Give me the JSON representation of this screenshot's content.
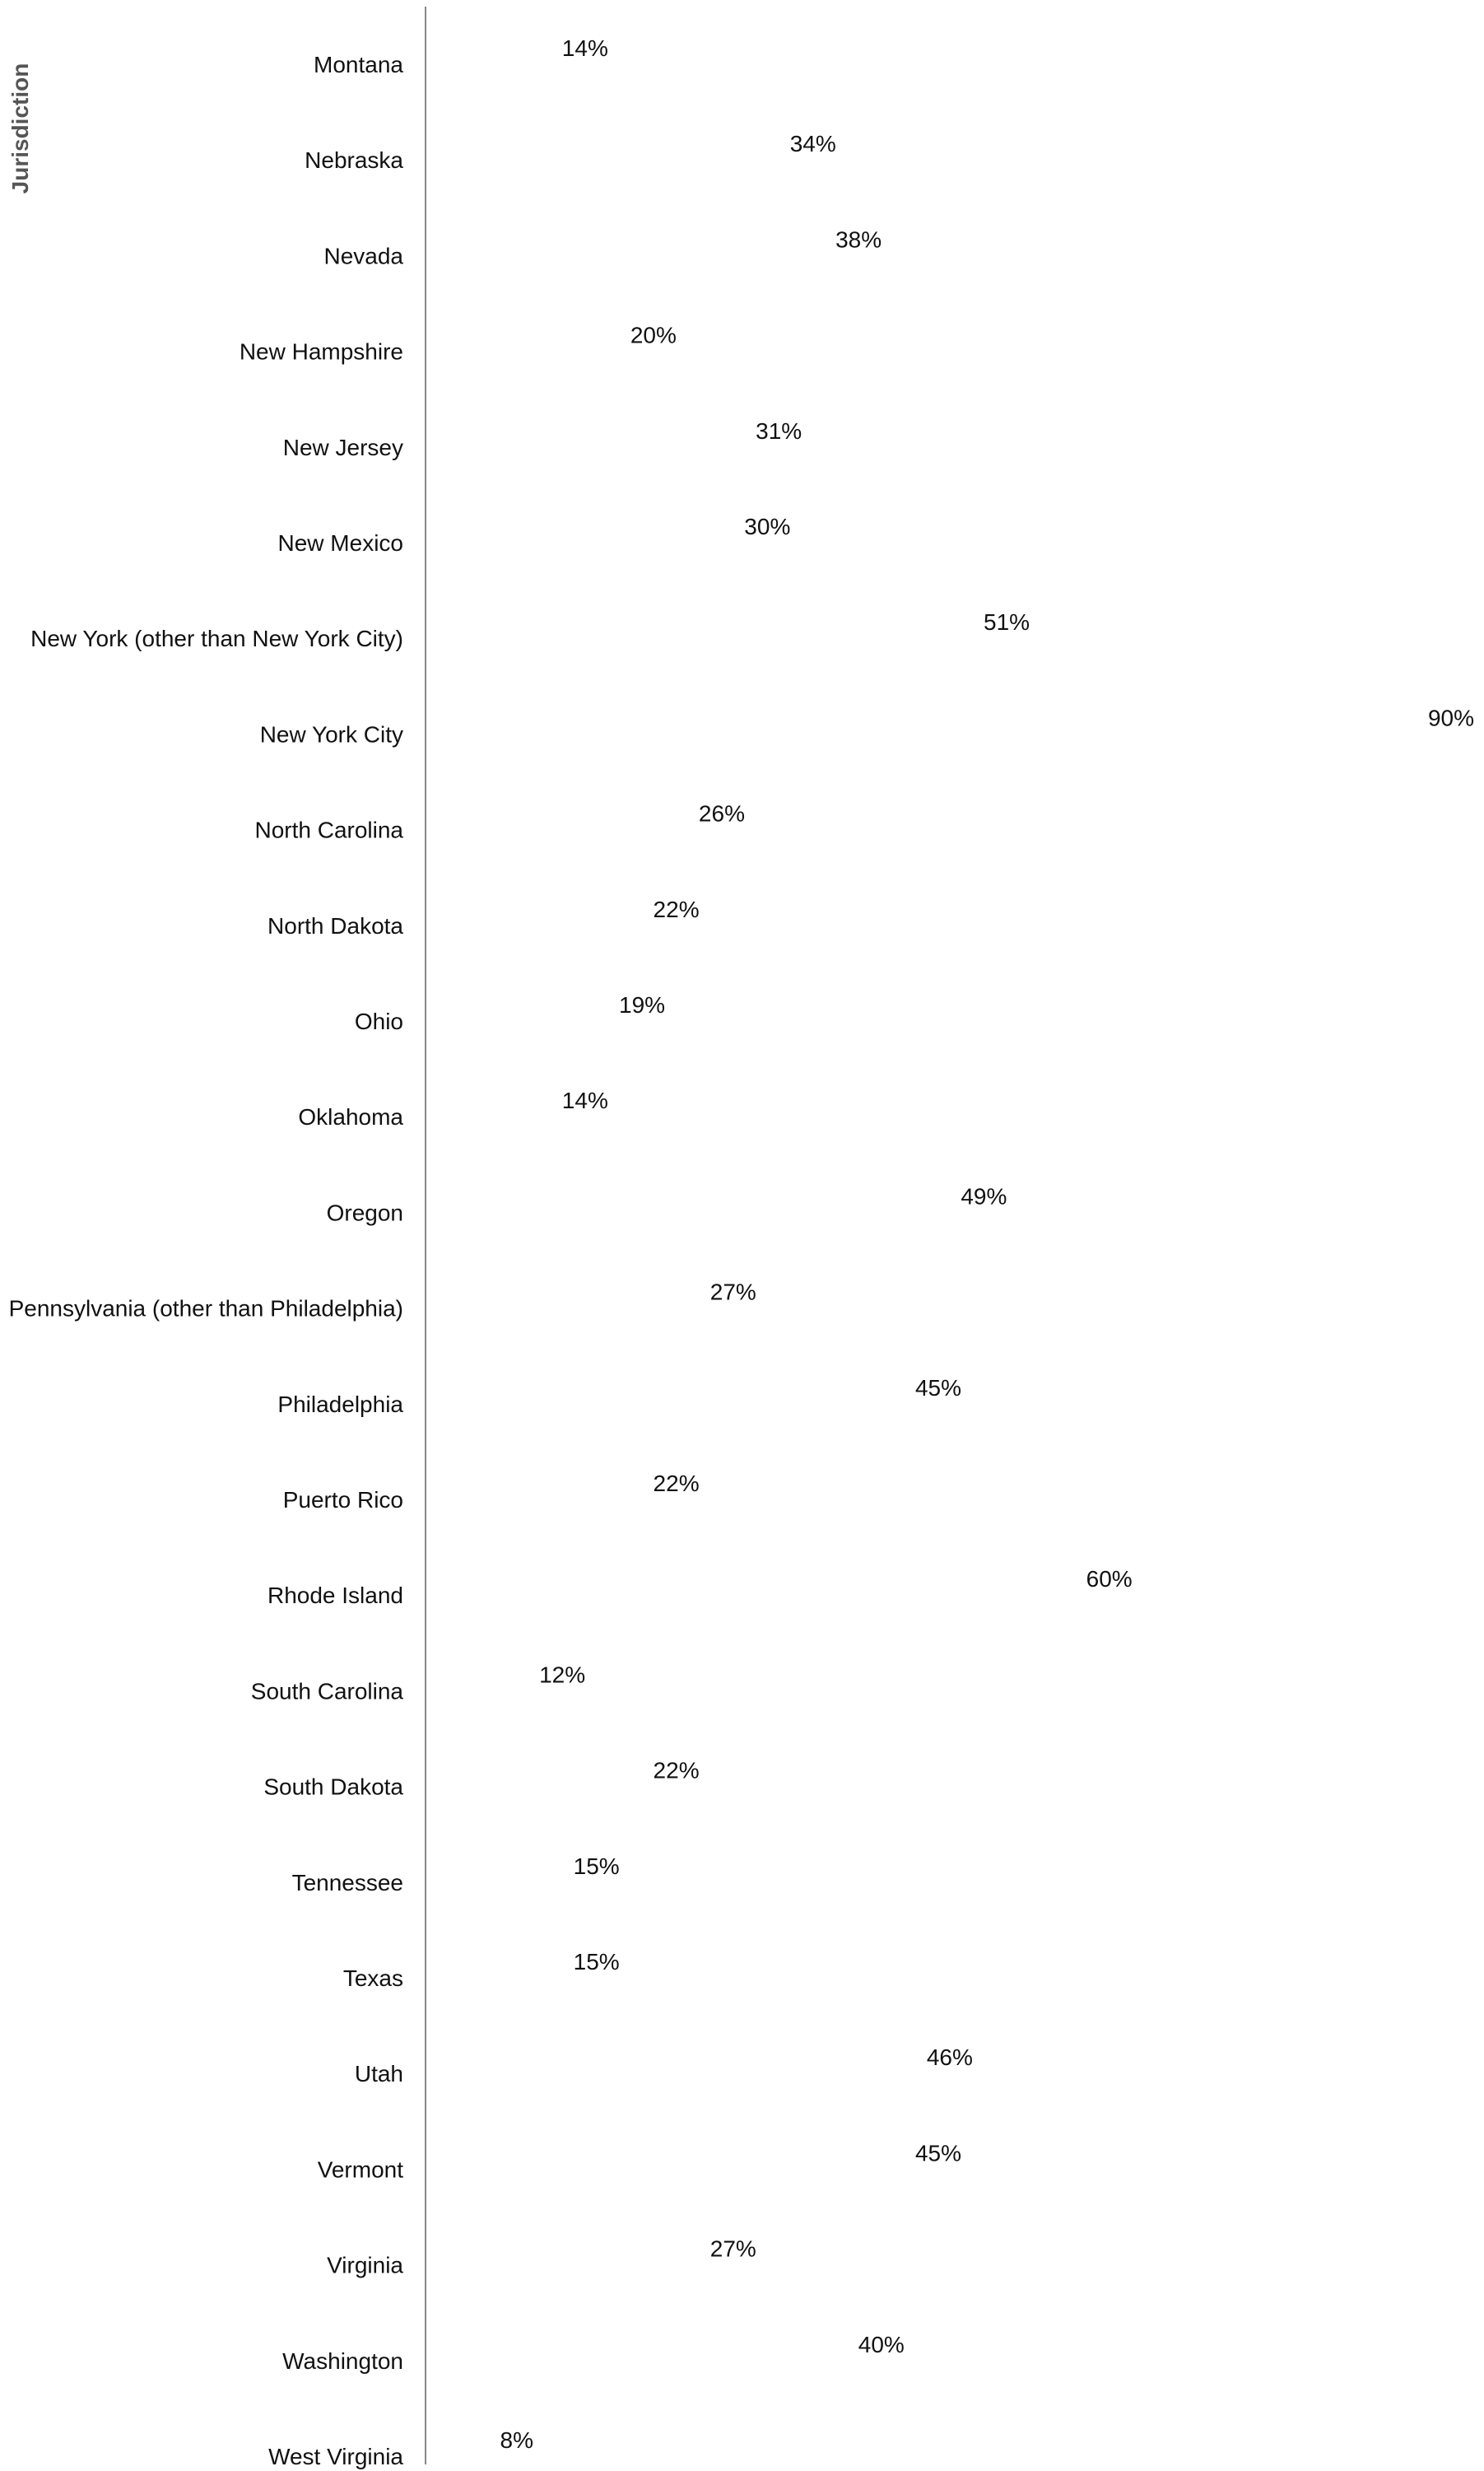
{
  "chart_data": {
    "type": "bar",
    "orientation": "horizontal",
    "ylabel": "Jurisdiction",
    "xlim": [
      0,
      90
    ],
    "grid": false,
    "bars_visible": false,
    "categories": [
      "Montana",
      "Nebraska",
      "Nevada",
      "New Hampshire",
      "New Jersey",
      "New Mexico",
      "New York (other than New York City)",
      "New York City",
      "North Carolina",
      "North Dakota",
      "Ohio",
      "Oklahoma",
      "Oregon",
      "Pennsylvania (other than Philadelphia)",
      "Philadelphia",
      "Puerto Rico",
      "Rhode Island",
      "South Carolina",
      "South Dakota",
      "Tennessee",
      "Texas",
      "Utah",
      "Vermont",
      "Virginia",
      "Washington",
      "West Virginia"
    ],
    "values": [
      14,
      34,
      38,
      20,
      31,
      30,
      51,
      90,
      26,
      22,
      19,
      14,
      49,
      27,
      45,
      22,
      60,
      12,
      22,
      15,
      15,
      46,
      45,
      27,
      40,
      8
    ],
    "value_labels": [
      "14%",
      "34%",
      "38%",
      "20%",
      "31%",
      "30%",
      "51%",
      "90%",
      "26%",
      "22%",
      "19%",
      "14%",
      "49%",
      "27%",
      "45%",
      "22%",
      "60%",
      "12%",
      "22%",
      "15%",
      "15%",
      "46%",
      "45%",
      "27%",
      "40%",
      "8%"
    ]
  }
}
